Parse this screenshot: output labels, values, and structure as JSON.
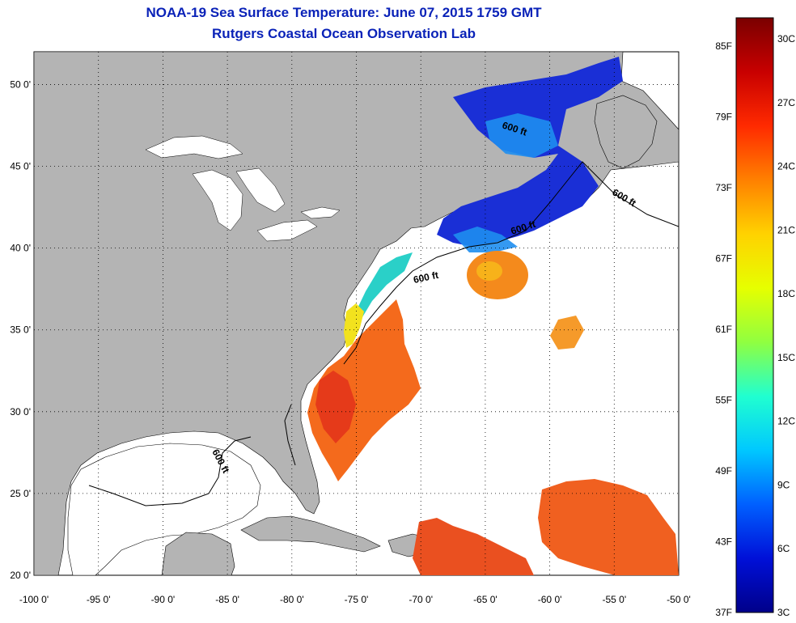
{
  "title": "NOAA-19 Sea Surface Temperature:  June 07, 2015 1759 GMT",
  "subtitle": "Rutgers Coastal Ocean Observation Lab",
  "map": {
    "lon_range": [
      -100,
      -50
    ],
    "lat_range": [
      20,
      52
    ],
    "lon_ticks": [
      "-100 0'",
      "-95 0'",
      "-90 0'",
      "-85 0'",
      "-80 0'",
      "-75 0'",
      "-70 0'",
      "-65 0'",
      "-60 0'",
      "-55 0'",
      "-50 0'"
    ],
    "lat_ticks": [
      "50 0'",
      "45 0'",
      "40 0'",
      "35 0'",
      "30 0'",
      "25 0'",
      "20 0'"
    ],
    "land_color": "#b4b4b4",
    "no_data_color": "#ffffff",
    "contour_label": "600 ft"
  },
  "colorbar": {
    "fahrenheit_labels": [
      "85F",
      "79F",
      "73F",
      "67F",
      "61F",
      "55F",
      "49F",
      "43F",
      "37F"
    ],
    "celsius_labels": [
      "30C",
      "27C",
      "24C",
      "21C",
      "18C",
      "15C",
      "12C",
      "9C",
      "6C",
      "3C"
    ],
    "colors": [
      "#7a0000",
      "#c80000",
      "#ff2a00",
      "#ff8000",
      "#ffd200",
      "#e6ff00",
      "#90ff40",
      "#20ffd0",
      "#00c8ff",
      "#0060ff",
      "#0010d8",
      "#00008a"
    ]
  }
}
